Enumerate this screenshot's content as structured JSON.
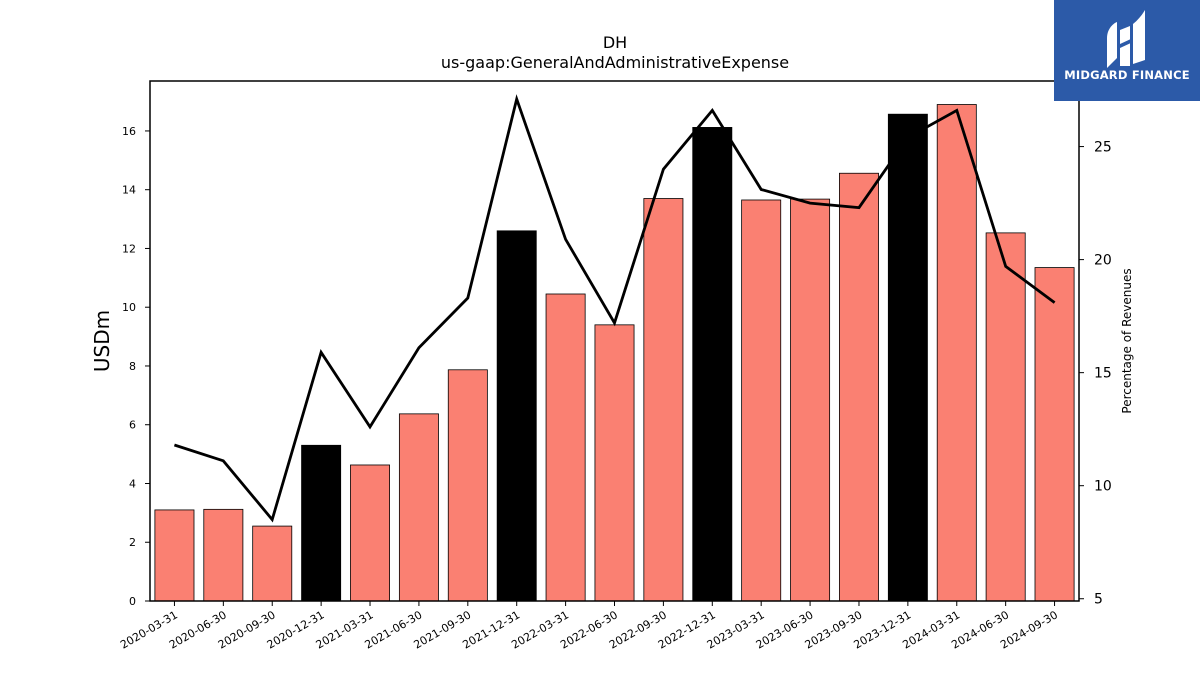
{
  "chart_data": {
    "type": "bar",
    "title": "DH",
    "subtitle": "us-gaap:GeneralAndAdministrativeExpense",
    "ylabel": "USDm",
    "y2label": "Percentage of Revenues",
    "ylim": [
      0,
      17.7
    ],
    "y2lim": [
      4.9,
      27.9
    ],
    "yticks": [
      0,
      2,
      4,
      6,
      8,
      10,
      12,
      14,
      16
    ],
    "y2ticks": [
      5,
      10,
      15,
      20,
      25
    ],
    "grid": false,
    "categories": [
      "2020-03-31",
      "2020-06-30",
      "2020-09-30",
      "2020-12-31",
      "2021-03-31",
      "2021-06-30",
      "2021-09-30",
      "2021-12-31",
      "2022-03-31",
      "2022-06-30",
      "2022-09-30",
      "2022-12-31",
      "2023-03-31",
      "2023-06-30",
      "2023-09-30",
      "2023-12-31",
      "2024-03-31",
      "2024-06-30",
      "2024-09-30"
    ],
    "series": [
      {
        "kind": "bar",
        "axis": "left",
        "values": [
          3.1,
          3.12,
          2.55,
          5.3,
          4.63,
          6.37,
          7.87,
          12.6,
          10.45,
          9.4,
          13.7,
          16.12,
          13.65,
          13.68,
          14.56,
          16.57,
          16.9,
          12.53,
          11.35
        ],
        "highlight": [
          false,
          false,
          false,
          true,
          false,
          false,
          false,
          true,
          false,
          false,
          false,
          true,
          false,
          false,
          false,
          true,
          false,
          false,
          false
        ]
      },
      {
        "kind": "line",
        "axis": "right",
        "values": [
          11.8,
          11.1,
          8.5,
          15.9,
          12.6,
          16.1,
          18.3,
          27.1,
          20.9,
          17.2,
          24.0,
          26.6,
          23.1,
          22.5,
          22.3,
          25.4,
          26.6,
          19.7,
          18.1
        ]
      }
    ],
    "colors": {
      "bar": "#fa8072",
      "highlight": "#000000",
      "line": "#000000"
    }
  },
  "logo": {
    "text": "MIDGARD FINANCE",
    "icon": "midgard-logo-icon",
    "background": "#2c5aa8"
  }
}
